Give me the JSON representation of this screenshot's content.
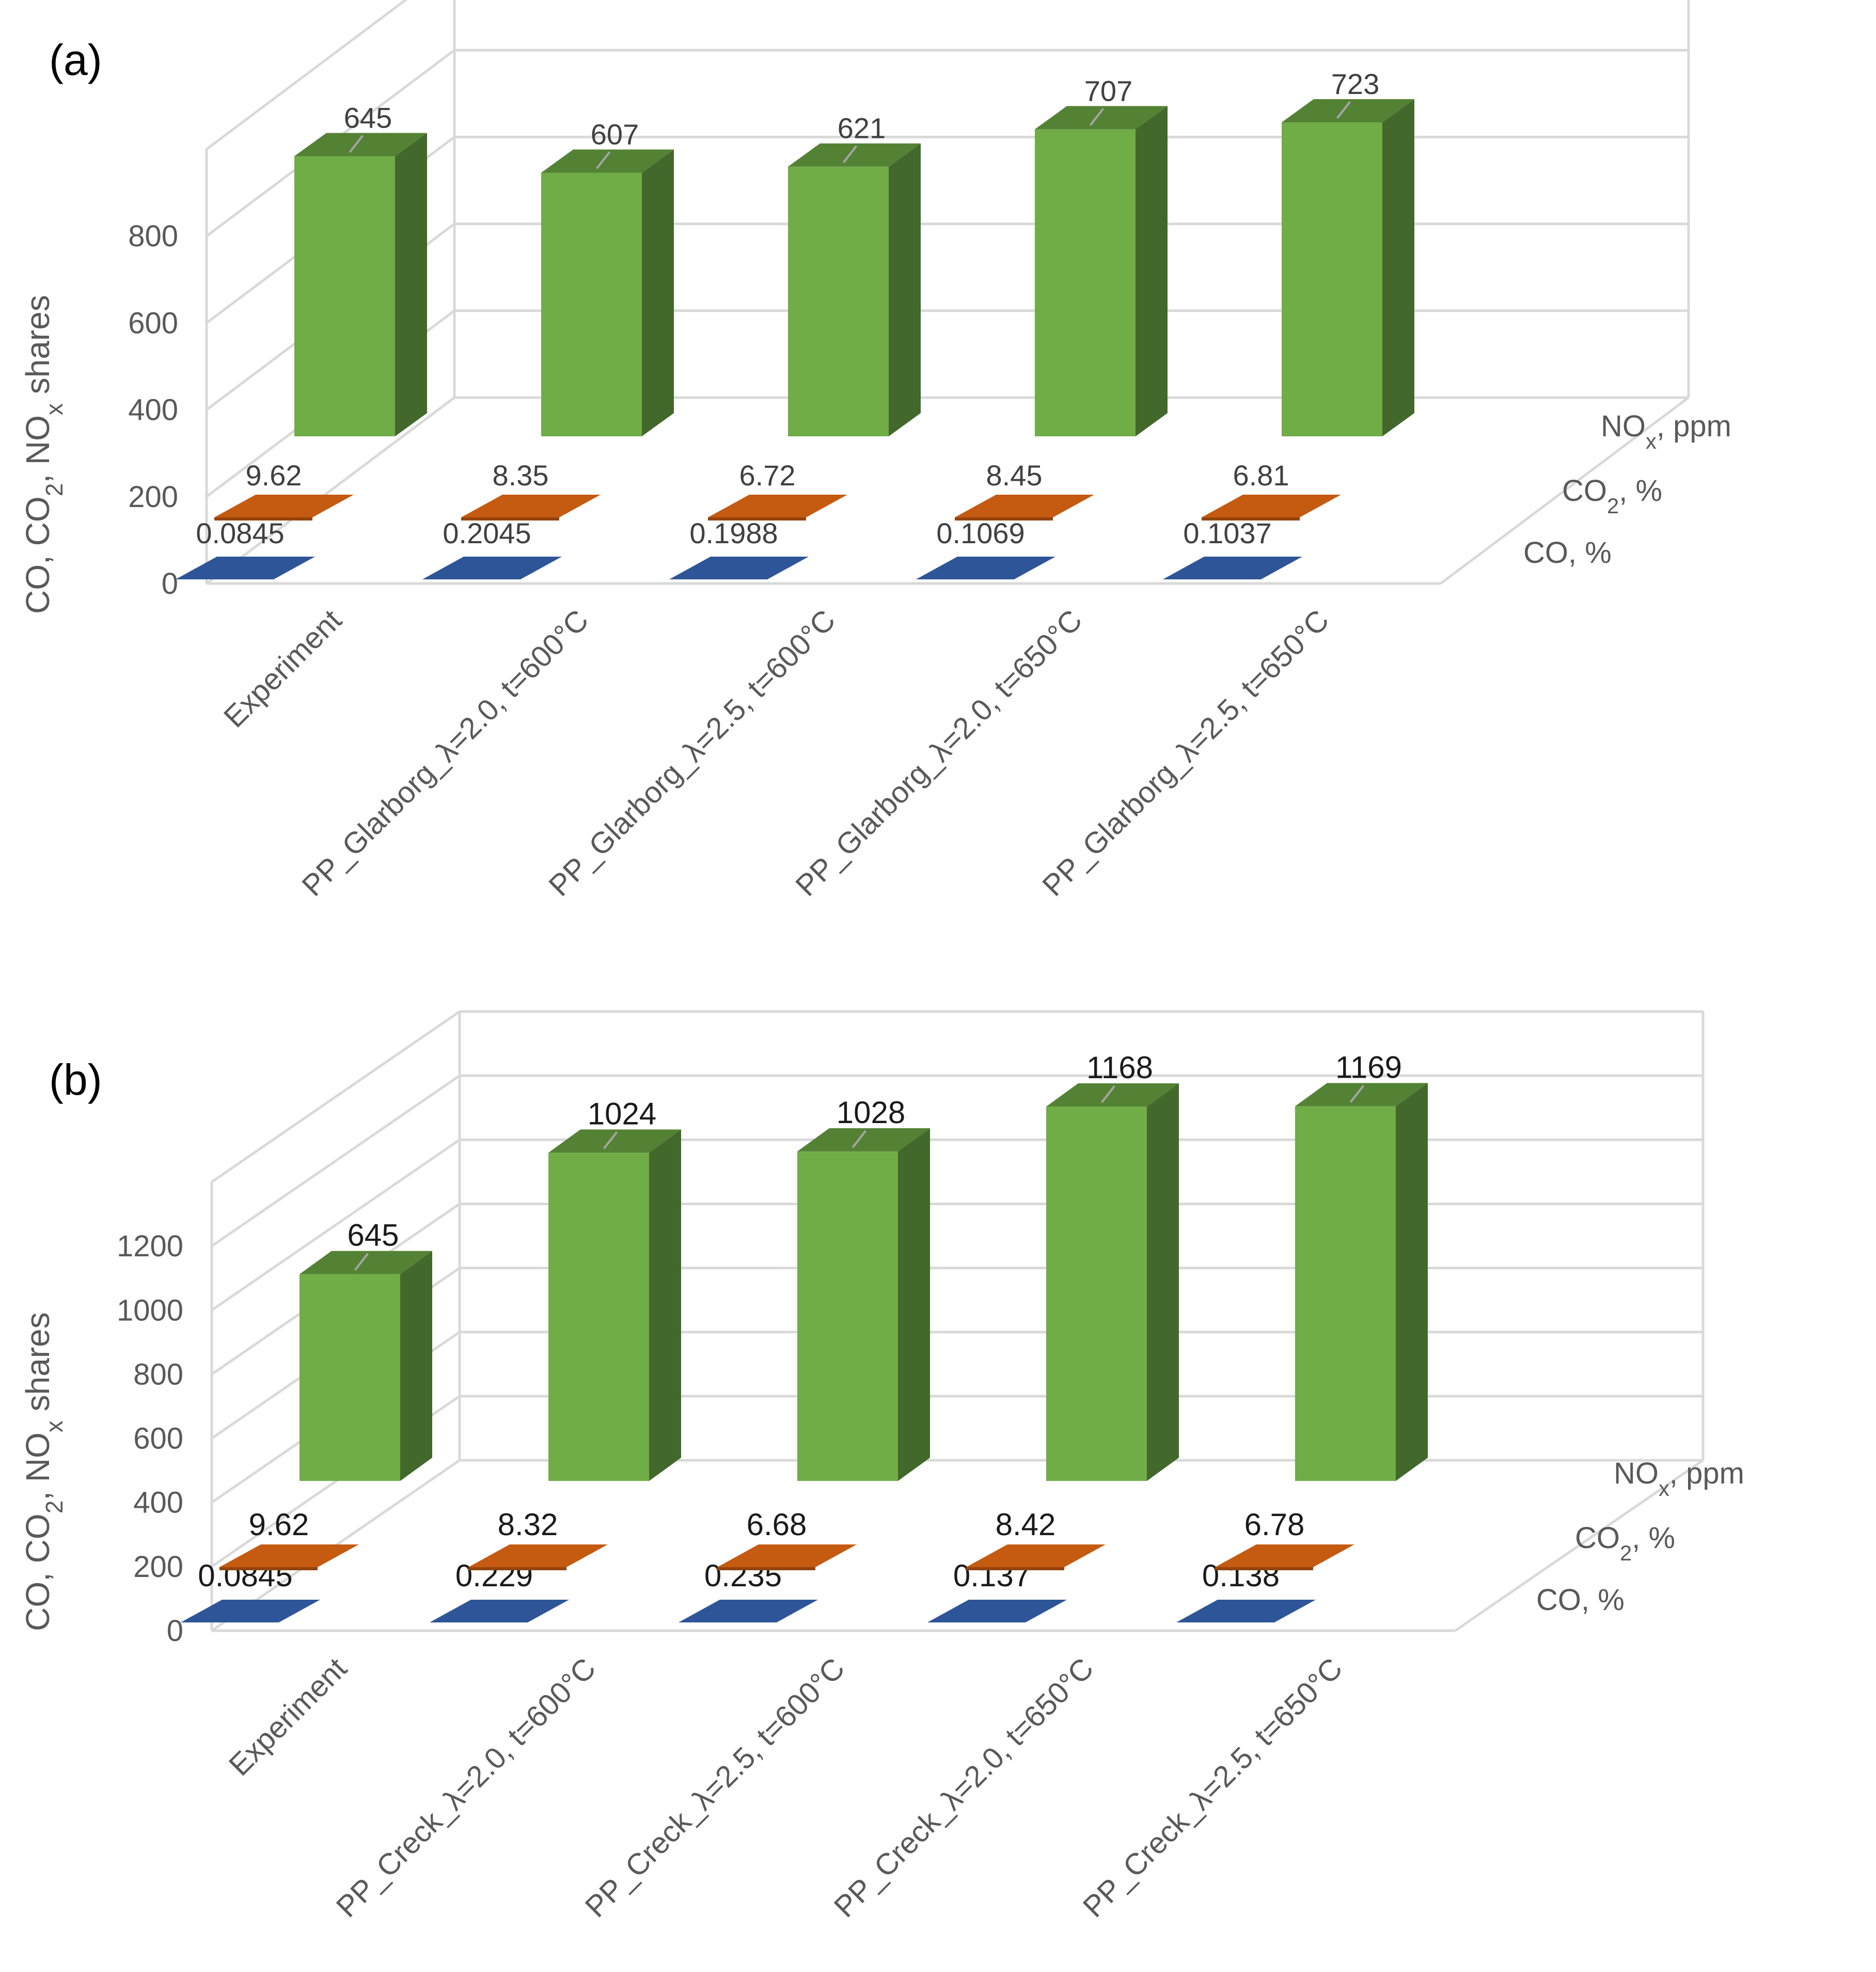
{
  "chart_data": [
    {
      "type": "bar",
      "subtype": "3d-column",
      "panel_label": "(a)",
      "ylabel": "CO, CO₂, NOₓ shares",
      "ylim": [
        0,
        1000
      ],
      "yticks": [
        "0",
        "200",
        "400",
        "600",
        "800"
      ],
      "categories": [
        "Experiment",
        "PP_Glarborg_λ=2.0, t=600°C",
        "PP_Glarborg_λ=2.5, t=600°C",
        "PP_Glarborg_λ=2.0, t=650°C",
        "PP_Glarborg_λ=2.5, t=650°C"
      ],
      "series": [
        {
          "name": "CO, %",
          "color": "#2e5597",
          "values": [
            0.0845,
            0.2045,
            0.1988,
            0.1069,
            0.1037
          ],
          "labels": [
            "0.0845",
            "0.2045",
            "0.1988",
            "0.1069",
            "0.1037"
          ]
        },
        {
          "name": "CO₂, %",
          "color": "#c55a11",
          "values": [
            9.62,
            8.35,
            6.72,
            8.45,
            6.81
          ],
          "labels": [
            "9.62",
            "8.35",
            "6.72",
            "8.45",
            "6.81"
          ]
        },
        {
          "name": "NOₓ, ppm",
          "color": "#70ad47",
          "values": [
            645,
            607,
            621,
            707,
            723
          ],
          "labels": [
            "645",
            "607",
            "621",
            "707",
            "723"
          ]
        }
      ]
    },
    {
      "type": "bar",
      "subtype": "3d-column",
      "panel_label": "(b)",
      "ylabel": "CO, CO₂, NOₓ shares",
      "ylim": [
        0,
        1400
      ],
      "yticks": [
        "0",
        "200",
        "400",
        "600",
        "800",
        "1000",
        "1200"
      ],
      "categories": [
        "Experiment",
        "PP_Creck_λ=2.0, t=600°C",
        "PP_Creck_λ=2.5, t=600°C",
        "PP_Creck_λ=2.0, t=650°C",
        "PP_Creck_λ=2.5, t=650°C"
      ],
      "series": [
        {
          "name": "CO, %",
          "color": "#2e5597",
          "values": [
            0.0845,
            0.229,
            0.235,
            0.137,
            0.138
          ],
          "labels": [
            "0.0845",
            "0.229",
            "0.235",
            "0.137",
            "0.138"
          ]
        },
        {
          "name": "CO₂, %",
          "color": "#c55a11",
          "values": [
            9.62,
            8.32,
            6.68,
            8.42,
            6.78
          ],
          "labels": [
            "9.62",
            "8.32",
            "6.68",
            "8.42",
            "6.78"
          ]
        },
        {
          "name": "NOₓ, ppm",
          "color": "#70ad47",
          "values": [
            645,
            1024,
            1028,
            1168,
            1169
          ],
          "labels": [
            "645",
            "1024",
            "1028",
            "1168",
            "1169"
          ]
        }
      ]
    }
  ]
}
